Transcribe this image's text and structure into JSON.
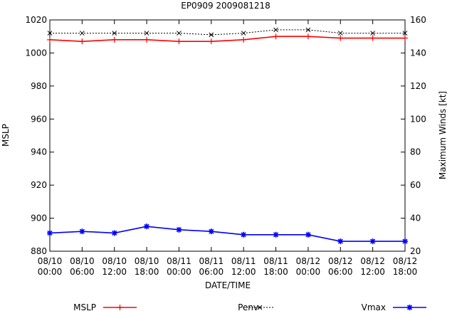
{
  "chart_data": {
    "type": "line",
    "title": "EP0909 2009081218",
    "xlabel": "DATE/TIME",
    "ylabel": "MSLP",
    "y2label": "Maximum Winds [kt]",
    "ylim": [
      880,
      1020
    ],
    "y2lim": [
      20,
      160
    ],
    "yticks": [
      880,
      900,
      920,
      940,
      960,
      980,
      1000,
      1020
    ],
    "y2ticks": [
      20,
      40,
      60,
      80,
      100,
      120,
      140,
      160
    ],
    "categories": [
      [
        "08/10",
        "00:00"
      ],
      [
        "08/10",
        "06:00"
      ],
      [
        "08/10",
        "12:00"
      ],
      [
        "08/10",
        "18:00"
      ],
      [
        "08/11",
        "00:00"
      ],
      [
        "08/11",
        "06:00"
      ],
      [
        "08/11",
        "12:00"
      ],
      [
        "08/11",
        "18:00"
      ],
      [
        "08/12",
        "00:00"
      ],
      [
        "08/12",
        "06:00"
      ],
      [
        "08/12",
        "12:00"
      ],
      [
        "08/12",
        "18:00"
      ]
    ],
    "series": [
      {
        "name": "MSLP",
        "axis": "left",
        "color": "#ff0000",
        "marker": "plus",
        "dashed": false,
        "values": [
          1008,
          1007,
          1008,
          1008,
          1007,
          1007,
          1008,
          1010,
          1010,
          1009,
          1009,
          1009
        ]
      },
      {
        "name": "Penv",
        "axis": "left",
        "color": "#000000",
        "marker": "cross",
        "dashed": true,
        "values": [
          1012,
          1012,
          1012,
          1012,
          1012,
          1011,
          1012,
          1014,
          1014,
          1012,
          1012,
          1012
        ]
      },
      {
        "name": "Vmax",
        "axis": "right",
        "color": "#0000ff",
        "marker": "star",
        "dashed": false,
        "values": [
          31,
          32,
          31,
          35,
          33,
          32,
          30,
          30,
          30,
          26,
          26,
          26
        ]
      }
    ]
  }
}
